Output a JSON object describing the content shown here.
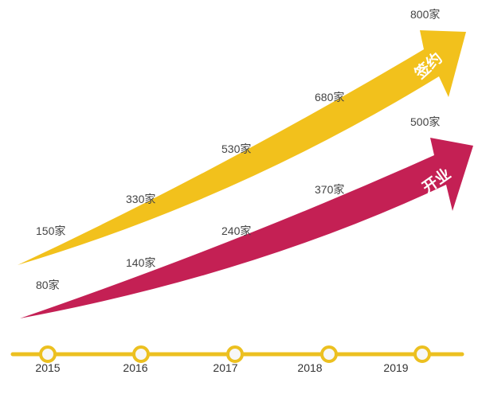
{
  "chart_data": {
    "type": "line",
    "title": "",
    "categories": [
      "2015",
      "2016",
      "2017",
      "2018",
      "2019"
    ],
    "unit": "家",
    "series": [
      {
        "name": "签约",
        "color": "#f2c11c",
        "values": [
          150,
          330,
          530,
          680,
          800
        ],
        "labels": [
          "150家",
          "330家",
          "530家",
          "680家",
          "800家"
        ]
      },
      {
        "name": "开业",
        "color": "#c42054",
        "values": [
          80,
          140,
          240,
          370,
          500
        ],
        "labels": [
          "80家",
          "140家",
          "240家",
          "370家",
          "500家"
        ]
      }
    ],
    "timeline_color": "#ecc020"
  }
}
